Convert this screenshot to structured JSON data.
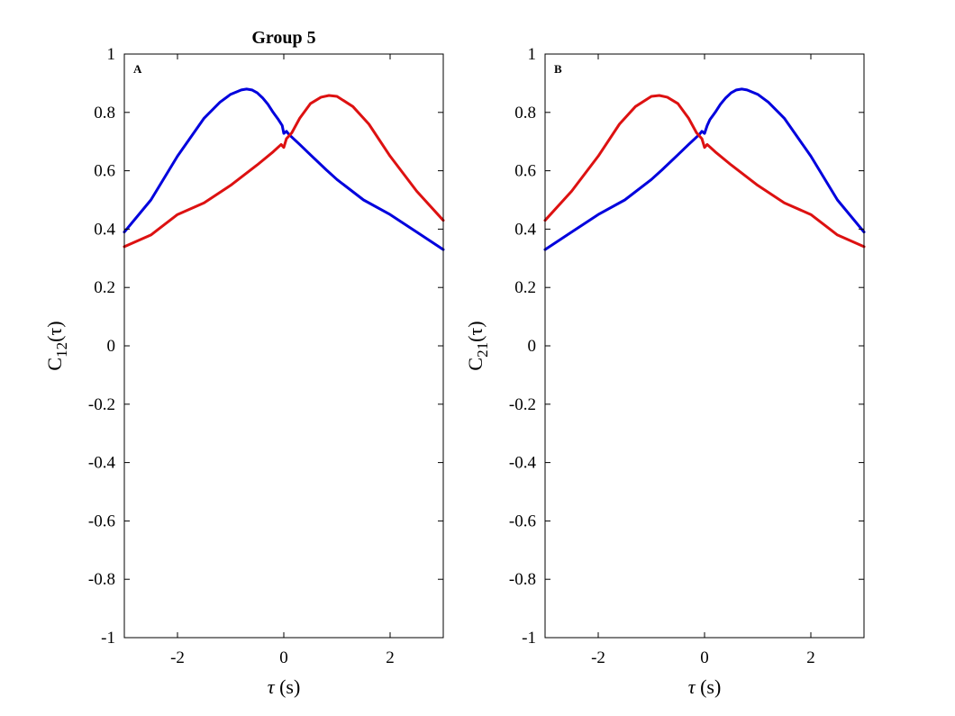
{
  "figure_title": "Group 5",
  "colors": {
    "series_blue": "#0000dd",
    "series_red": "#dd1111",
    "axes": "#000000"
  },
  "chart_data": [
    {
      "type": "line",
      "panel_label": "A",
      "ylabel_main": "C",
      "ylabel_sub": "12",
      "ylabel_arg": "(τ)",
      "xlabel_sym": "τ",
      "xlabel_unit": " (s)",
      "xlim": [
        -3,
        3
      ],
      "ylim": [
        -1,
        1
      ],
      "xticks": [
        -2,
        0,
        2
      ],
      "xtick_labels": [
        "-2",
        "0",
        "2"
      ],
      "yticks": [
        -1,
        -0.8,
        -0.6,
        -0.4,
        -0.2,
        0,
        0.2,
        0.4,
        0.6,
        0.8,
        1
      ],
      "ytick_labels": [
        "-1",
        "-0.8",
        "-0.6",
        "-0.4",
        "-0.2",
        "0",
        "0.2",
        "0.4",
        "0.6",
        "0.8",
        "1"
      ],
      "grid": false,
      "series": [
        {
          "color": "#0000dd",
          "x": [
            -3,
            -2.5,
            -2,
            -1.5,
            -1.2,
            -1,
            -0.8,
            -0.7,
            -0.6,
            -0.5,
            -0.4,
            -0.3,
            -0.2,
            -0.1,
            -0.03,
            0,
            0.05,
            0.1,
            0.3,
            0.5,
            0.8,
            1,
            1.5,
            2,
            2.5,
            3
          ],
          "y": [
            0.39,
            0.5,
            0.65,
            0.78,
            0.835,
            0.862,
            0.877,
            0.88,
            0.877,
            0.867,
            0.85,
            0.828,
            0.8,
            0.775,
            0.755,
            0.728,
            0.735,
            0.724,
            0.69,
            0.655,
            0.603,
            0.57,
            0.5,
            0.45,
            0.39,
            0.33
          ]
        },
        {
          "color": "#dd1111",
          "x": [
            -3,
            -2.5,
            -2,
            -1.5,
            -1,
            -0.5,
            -0.2,
            -0.05,
            0,
            0.05,
            0.15,
            0.3,
            0.5,
            0.7,
            0.85,
            1,
            1.3,
            1.6,
            2,
            2.5,
            3
          ],
          "y": [
            0.34,
            0.38,
            0.45,
            0.49,
            0.55,
            0.62,
            0.665,
            0.69,
            0.68,
            0.71,
            0.73,
            0.78,
            0.83,
            0.852,
            0.858,
            0.855,
            0.82,
            0.76,
            0.65,
            0.53,
            0.43
          ]
        }
      ]
    },
    {
      "type": "line",
      "panel_label": "B",
      "ylabel_main": "C",
      "ylabel_sub": "21",
      "ylabel_arg": "(τ)",
      "xlabel_sym": "τ",
      "xlabel_unit": " (s)",
      "xlim": [
        -3,
        3
      ],
      "ylim": [
        -1,
        1
      ],
      "xticks": [
        -2,
        0,
        2
      ],
      "xtick_labels": [
        "-2",
        "0",
        "2"
      ],
      "yticks": [
        -1,
        -0.8,
        -0.6,
        -0.4,
        -0.2,
        0,
        0.2,
        0.4,
        0.6,
        0.8,
        1
      ],
      "ytick_labels": [
        "-1",
        "-0.8",
        "-0.6",
        "-0.4",
        "-0.2",
        "0",
        "0.2",
        "0.4",
        "0.6",
        "0.8",
        "1"
      ],
      "grid": false,
      "series": [
        {
          "color": "#0000dd",
          "x": [
            -3,
            -2.5,
            -2,
            -1.5,
            -1,
            -0.8,
            -0.5,
            -0.3,
            -0.1,
            -0.05,
            0,
            0.05,
            0.1,
            0.2,
            0.3,
            0.4,
            0.5,
            0.6,
            0.7,
            0.8,
            1,
            1.2,
            1.5,
            2,
            2.5,
            3
          ],
          "y": [
            0.33,
            0.39,
            0.45,
            0.5,
            0.57,
            0.603,
            0.655,
            0.69,
            0.724,
            0.735,
            0.728,
            0.755,
            0.775,
            0.8,
            0.828,
            0.85,
            0.867,
            0.877,
            0.88,
            0.877,
            0.862,
            0.835,
            0.78,
            0.65,
            0.5,
            0.39
          ]
        },
        {
          "color": "#dd1111",
          "x": [
            -3,
            -2.5,
            -2,
            -1.6,
            -1.3,
            -1,
            -0.85,
            -0.7,
            -0.5,
            -0.3,
            -0.15,
            -0.05,
            0,
            0.05,
            0.2,
            0.5,
            1,
            1.5,
            2,
            2.5,
            3
          ],
          "y": [
            0.43,
            0.53,
            0.65,
            0.76,
            0.82,
            0.855,
            0.858,
            0.852,
            0.83,
            0.78,
            0.73,
            0.71,
            0.68,
            0.69,
            0.665,
            0.62,
            0.55,
            0.49,
            0.45,
            0.38,
            0.34
          ]
        }
      ]
    }
  ]
}
